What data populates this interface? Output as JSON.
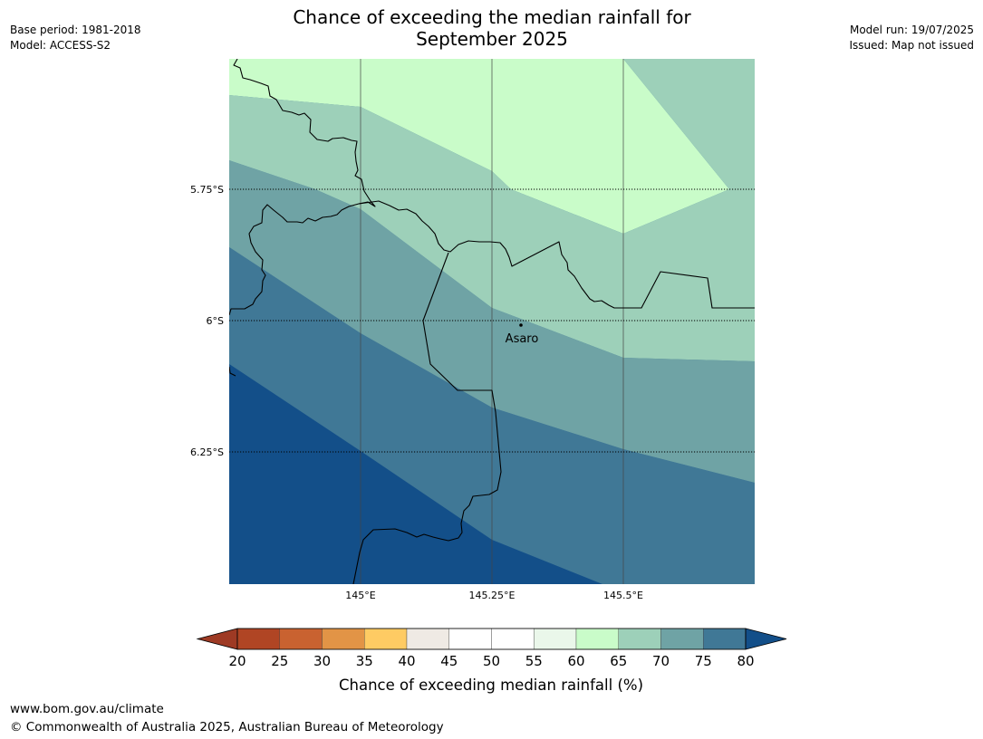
{
  "meta": {
    "base_period": "Base period: 1981-2018",
    "model": "Model: ACCESS-S2",
    "model_run": "Model run: 19/07/2025",
    "issued": "Issued: Map not issued"
  },
  "title": {
    "line1": "Chance of exceeding the median rainfall for",
    "line2": "September 2025"
  },
  "map": {
    "lat_labels": [
      "5.75°S",
      "6°S",
      "6.25°S"
    ],
    "lon_labels": [
      "145°E",
      "145.25°E",
      "145.5°E"
    ],
    "place": {
      "name": "Asaro",
      "icon": "location-dot-icon"
    },
    "zone_colors": [
      "#c9fcc9",
      "#9dd0b9",
      "#6fa3a5",
      "#407896",
      "#134f89"
    ]
  },
  "colorbar": {
    "ticks": [
      "20",
      "25",
      "30",
      "35",
      "40",
      "45",
      "50",
      "55",
      "60",
      "65",
      "70",
      "75",
      "80"
    ],
    "colors": [
      "#9e3a24",
      "#b04524",
      "#c96230",
      "#e29446",
      "#fecb63",
      "#efeae4",
      "#ffffff",
      "#ffffff",
      "#eaf7ea",
      "#c9fcc9",
      "#9dd0b9",
      "#6fa3a5",
      "#407896",
      "#134f89"
    ],
    "label": "Chance of exceeding median rainfall (%)"
  },
  "footer": {
    "url": "www.bom.gov.au/climate",
    "copyright": "© Commonwealth of Australia 2025, Australian Bureau of Meteorology"
  }
}
